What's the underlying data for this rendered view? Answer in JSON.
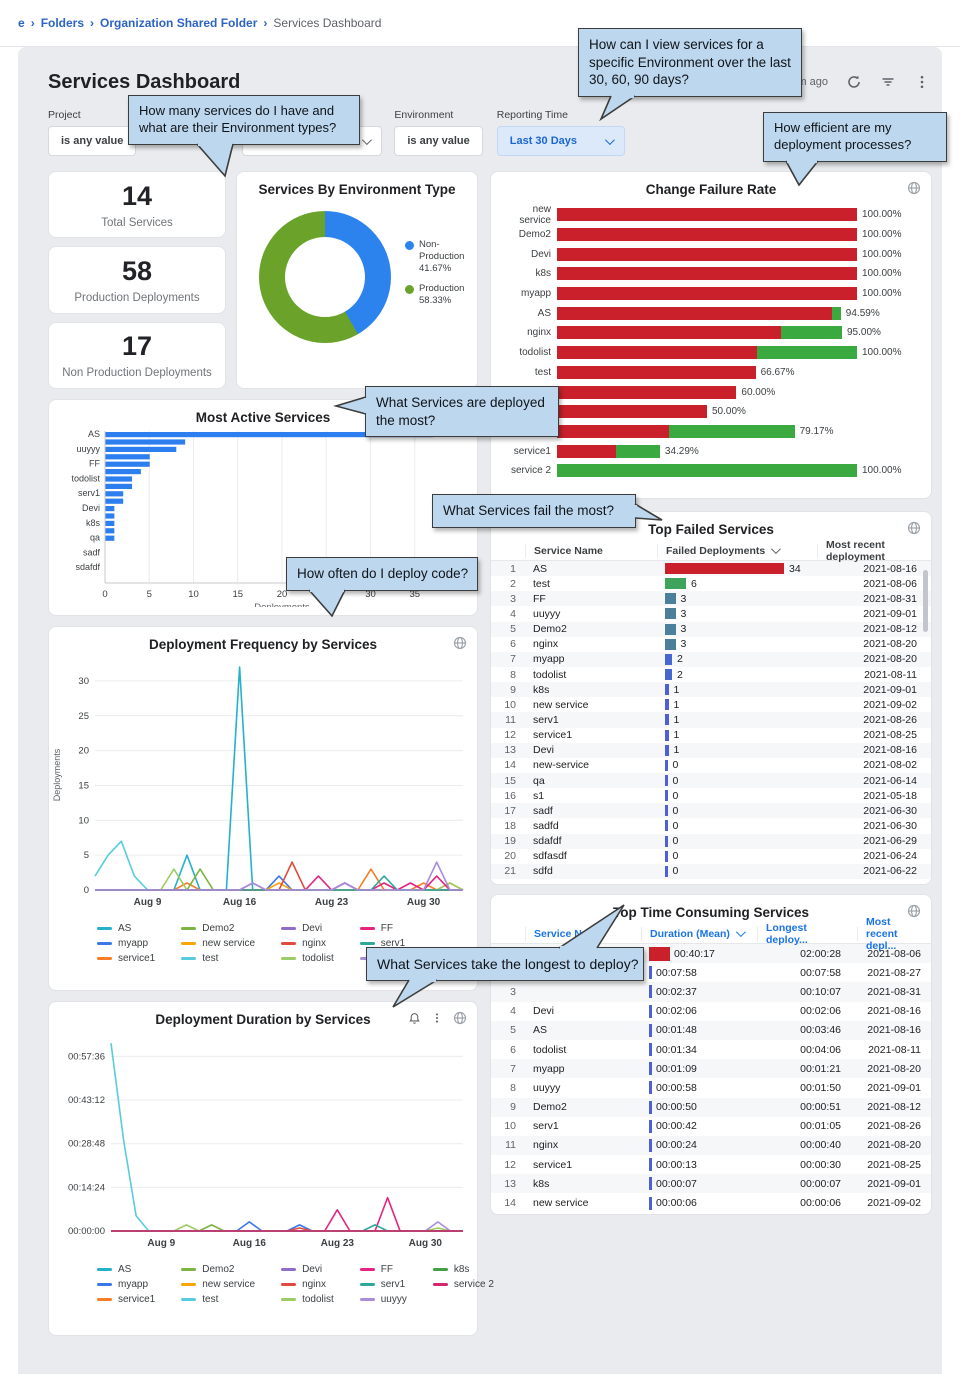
{
  "breadcrumb": {
    "items": [
      "e",
      "Folders",
      "Organization Shared Folder",
      "Services Dashboard"
    ]
  },
  "header": {
    "title": "Services Dashboard",
    "last_refresh": "10m ago"
  },
  "filters": {
    "project_label": "Project",
    "project_value": "is any value",
    "environment_label": "Environment",
    "environment_value": "is any value",
    "reporting_label": "Reporting Time",
    "reporting_value": "Last 30 Days"
  },
  "kpis": [
    {
      "value": "14",
      "label": "Total Services"
    },
    {
      "value": "58",
      "label": "Production Deployments"
    },
    {
      "value": "17",
      "label": "Non Production Deployments"
    }
  ],
  "callouts": {
    "c1": "How can I view services for a specific Environment over the last 30, 60, 90 days?",
    "c2": "How many services do I have and what are their Environment types?",
    "c3": "How efficient are my deployment processes?",
    "c4": "What Services are deployed the most?",
    "c5": "What Services fail the most?",
    "c6": "How often do I deploy code?",
    "c7": "What Services take the longest to deploy?"
  },
  "donut": {
    "title": "Services By Environment Type",
    "type": "pie",
    "slices": [
      {
        "label": "Non-Production",
        "pct": 41.67,
        "pct_label": "41.67%",
        "color": "#2d83ee"
      },
      {
        "label": "Production",
        "pct": 58.33,
        "pct_label": "58.33%",
        "color": "#6ba32a"
      }
    ]
  },
  "change_failure": {
    "title": "Change Failure Rate",
    "type": "bar",
    "red": "#c9202b",
    "green": "#3aa93f",
    "rows": [
      {
        "label": "new service",
        "red": 1.0,
        "green": 0,
        "pct": "100.00%"
      },
      {
        "label": "Demo2",
        "red": 1.0,
        "green": 0,
        "pct": "100.00%"
      },
      {
        "label": "Devi",
        "red": 1.0,
        "green": 0,
        "pct": "100.00%"
      },
      {
        "label": "k8s",
        "red": 1.0,
        "green": 0,
        "pct": "100.00%"
      },
      {
        "label": "myapp",
        "red": 1.0,
        "green": 0,
        "pct": "100.00%"
      },
      {
        "label": "AS",
        "red": 0.915,
        "green": 0.031,
        "pct": "94.59%"
      },
      {
        "label": "nginx",
        "red": 0.748,
        "green": 0.202,
        "pct": "95.00%"
      },
      {
        "label": "todolist",
        "red": 0.665,
        "green": 0.335,
        "pct": "100.00%"
      },
      {
        "label": "test",
        "red": 0.662,
        "green": 0,
        "pct": "66.67%"
      },
      {
        "label": "",
        "red": 0.598,
        "green": 0,
        "pct": "60.00%"
      },
      {
        "label": "",
        "red": 0.5,
        "green": 0,
        "pct": "50.00%"
      },
      {
        "label": "uuyyy",
        "red": 0.374,
        "green": 0.418,
        "pct": "79.17%"
      },
      {
        "label": "service1",
        "red": 0.197,
        "green": 0.146,
        "pct": "34.29%"
      },
      {
        "label": "service 2",
        "red": 0,
        "green": 1.0,
        "pct": "100.00%"
      }
    ]
  },
  "most_active": {
    "title": "Most Active Services",
    "type": "bar",
    "xlabel": "Deployments",
    "bar_color": "#2d7ff0",
    "xticks": [
      0,
      5,
      10,
      15,
      20,
      25,
      30,
      35
    ],
    "xmax": 40,
    "rows": [
      {
        "label": "AS",
        "value": 37
      },
      {
        "label": "",
        "value": 9
      },
      {
        "label": "uuyyy",
        "value": 8
      },
      {
        "label": "",
        "value": 5
      },
      {
        "label": "FF",
        "value": 5
      },
      {
        "label": "",
        "value": 4
      },
      {
        "label": "todolist",
        "value": 3
      },
      {
        "label": "",
        "value": 3
      },
      {
        "label": "serv1",
        "value": 2
      },
      {
        "label": "",
        "value": 2
      },
      {
        "label": "Devi",
        "value": 1
      },
      {
        "label": "",
        "value": 1
      },
      {
        "label": "k8s",
        "value": 1
      },
      {
        "label": "",
        "value": 1
      },
      {
        "label": "qa",
        "value": 1
      },
      {
        "label": "",
        "value": 0
      },
      {
        "label": "sadf",
        "value": 0
      },
      {
        "label": "",
        "value": 0
      },
      {
        "label": "sdafdf",
        "value": 0
      },
      {
        "label": "",
        "value": 0
      }
    ]
  },
  "top_failed": {
    "title": "Top Failed Services",
    "type": "table",
    "columns": [
      "Service Name",
      "Failed Deployments",
      "Most recent deployment"
    ],
    "rows": [
      {
        "n": "1",
        "name": "AS",
        "value": "34",
        "date": "2021-08-16",
        "color": "#c9202b"
      },
      {
        "n": "2",
        "name": "test",
        "value": "6",
        "date": "2021-08-06",
        "color": "#3fa45b"
      },
      {
        "n": "3",
        "name": "FF",
        "value": "3",
        "date": "2021-08-31",
        "color": "#4c7f9b"
      },
      {
        "n": "4",
        "name": "uuyyy",
        "value": "3",
        "date": "2021-09-01",
        "color": "#4c7f9b"
      },
      {
        "n": "5",
        "name": "Demo2",
        "value": "3",
        "date": "2021-08-12",
        "color": "#4c7f9b"
      },
      {
        "n": "6",
        "name": "nginx",
        "value": "3",
        "date": "2021-08-20",
        "color": "#4c7f9b"
      },
      {
        "n": "7",
        "name": "myapp",
        "value": "2",
        "date": "2021-08-20",
        "color": "#4968cf"
      },
      {
        "n": "8",
        "name": "todolist",
        "value": "2",
        "date": "2021-08-11",
        "color": "#4968cf"
      },
      {
        "n": "9",
        "name": "k8s",
        "value": "1",
        "date": "2021-09-01",
        "color": "#4f5fd6"
      },
      {
        "n": "10",
        "name": "new service",
        "value": "1",
        "date": "2021-09-02",
        "color": "#4f5fd6"
      },
      {
        "n": "11",
        "name": "serv1",
        "value": "1",
        "date": "2021-08-26",
        "color": "#4f5fd6"
      },
      {
        "n": "12",
        "name": "service1",
        "value": "1",
        "date": "2021-08-25",
        "color": "#4f5fd6"
      },
      {
        "n": "13",
        "name": "Devi",
        "value": "1",
        "date": "2021-08-16",
        "color": "#4f5fd6"
      },
      {
        "n": "14",
        "name": "new-service",
        "value": "0",
        "date": "2021-08-02",
        "color": "#4f5fd6"
      },
      {
        "n": "15",
        "name": "qa",
        "value": "0",
        "date": "2021-06-14",
        "color": "#4f5fd6"
      },
      {
        "n": "16",
        "name": "s1",
        "value": "0",
        "date": "2021-05-18",
        "color": "#4f5fd6"
      },
      {
        "n": "17",
        "name": "sadf",
        "value": "0",
        "date": "2021-06-30",
        "color": "#4f5fd6"
      },
      {
        "n": "18",
        "name": "sadfd",
        "value": "0",
        "date": "2021-06-30",
        "color": "#4f5fd6"
      },
      {
        "n": "19",
        "name": "sdafdf",
        "value": "0",
        "date": "2021-06-29",
        "color": "#4f5fd6"
      },
      {
        "n": "20",
        "name": "sdfasdf",
        "value": "0",
        "date": "2021-06-24",
        "color": "#4f5fd6"
      },
      {
        "n": "21",
        "name": "sdfd",
        "value": "0",
        "date": "2021-06-22",
        "color": "#4f5fd6"
      }
    ]
  },
  "deploy_freq": {
    "title": "Deployment Frequency by Services",
    "type": "line",
    "ylabel": "Deployments",
    "yticks": [
      0,
      5,
      10,
      15,
      20,
      25,
      30
    ],
    "ymax": 33,
    "n": 29,
    "xticks": [
      {
        "i": 4,
        "label": "Aug 9"
      },
      {
        "i": 11,
        "label": "Aug 16"
      },
      {
        "i": 18,
        "label": "Aug 23"
      },
      {
        "i": 25,
        "label": "Aug 30"
      }
    ],
    "series": [
      {
        "name": "AS",
        "color": "#26b1c9",
        "points": {
          "7": 5,
          "11": 32
        }
      },
      {
        "name": "myapp",
        "color": "#3b78e7",
        "points": {
          "14": 2,
          "19": 1
        }
      },
      {
        "name": "service1",
        "color": "#f77d26",
        "points": {
          "7": 1,
          "21": 3,
          "25": 1
        }
      },
      {
        "name": "Demo2",
        "color": "#7cb342",
        "points": {
          "8": 3
        }
      },
      {
        "name": "new service",
        "color": "#f6a609",
        "points": {
          "14": 1,
          "27": 1
        }
      },
      {
        "name": "test",
        "color": "#57ccdd",
        "points": {
          "0": 2,
          "1": 5,
          "2": 7,
          "3": 2
        }
      },
      {
        "name": "Devi",
        "color": "#8e6cc9",
        "points": {
          "12": 1
        }
      },
      {
        "name": "nginx",
        "color": "#e04b40",
        "points": {
          "15": 4
        }
      },
      {
        "name": "todolist",
        "color": "#9ccc65",
        "points": {
          "6": 3,
          "27": 1
        }
      },
      {
        "name": "FF",
        "color": "#e5247f",
        "points": {
          "17": 2,
          "19": 1,
          "22": 1,
          "24": 1,
          "26": 2
        }
      },
      {
        "name": "serv1",
        "color": "#2fa89a",
        "points": {
          "22": 2
        }
      },
      {
        "name": "uuyyy",
        "color": "#a98ddb",
        "points": {
          "12": 1,
          "19": 1,
          "26": 4
        }
      }
    ]
  },
  "top_time": {
    "title": "Top Time Consuming Services",
    "type": "table",
    "columns": [
      "Service Name",
      "Duration (Mean)",
      "Longest deploy...",
      "Most recent depl..."
    ],
    "rows": [
      {
        "n": "1",
        "name": "",
        "mean": "00:40:17",
        "longest": "02:00:28",
        "date": "2021-08-06",
        "bar": "block"
      },
      {
        "n": "2",
        "name": "",
        "mean": "00:07:58",
        "longest": "00:07:58",
        "date": "2021-08-27",
        "bar": "tick"
      },
      {
        "n": "3",
        "name": "",
        "mean": "00:02:37",
        "longest": "00:10:07",
        "date": "2021-08-31",
        "bar": "tick"
      },
      {
        "n": "4",
        "name": "Devi",
        "mean": "00:02:06",
        "longest": "00:02:06",
        "date": "2021-08-16",
        "bar": "tick"
      },
      {
        "n": "5",
        "name": "AS",
        "mean": "00:01:48",
        "longest": "00:03:46",
        "date": "2021-08-16",
        "bar": "tick"
      },
      {
        "n": "6",
        "name": "todolist",
        "mean": "00:01:34",
        "longest": "00:04:06",
        "date": "2021-08-11",
        "bar": "tick"
      },
      {
        "n": "7",
        "name": "myapp",
        "mean": "00:01:09",
        "longest": "00:01:21",
        "date": "2021-08-20",
        "bar": "tick"
      },
      {
        "n": "8",
        "name": "uuyyy",
        "mean": "00:00:58",
        "longest": "00:01:50",
        "date": "2021-09-01",
        "bar": "tick"
      },
      {
        "n": "9",
        "name": "Demo2",
        "mean": "00:00:50",
        "longest": "00:00:51",
        "date": "2021-08-12",
        "bar": "tick"
      },
      {
        "n": "10",
        "name": "serv1",
        "mean": "00:00:42",
        "longest": "00:01:05",
        "date": "2021-08-26",
        "bar": "tick"
      },
      {
        "n": "11",
        "name": "nginx",
        "mean": "00:00:24",
        "longest": "00:00:40",
        "date": "2021-08-20",
        "bar": "tick"
      },
      {
        "n": "12",
        "name": "service1",
        "mean": "00:00:13",
        "longest": "00:00:30",
        "date": "2021-08-25",
        "bar": "tick"
      },
      {
        "n": "13",
        "name": "k8s",
        "mean": "00:00:07",
        "longest": "00:00:07",
        "date": "2021-09-01",
        "bar": "tick"
      },
      {
        "n": "14",
        "name": "new service",
        "mean": "00:00:06",
        "longest": "00:00:06",
        "date": "2021-09-02",
        "bar": "tick"
      }
    ],
    "bar_block_color": "#c9202b",
    "bar_tick_color": "#4f5fd6"
  },
  "deploy_duration": {
    "title": "Deployment Duration by Services",
    "type": "line",
    "yticks": [
      {
        "v": 0,
        "label": "00:00:00"
      },
      {
        "v": 14.4,
        "label": "00:14:24"
      },
      {
        "v": 28.8,
        "label": "00:28:48"
      },
      {
        "v": 43.2,
        "label": "00:43:12"
      },
      {
        "v": 57.6,
        "label": "00:57:36"
      }
    ],
    "ymax": 64,
    "n": 29,
    "xticks": [
      {
        "i": 4,
        "label": "Aug 9"
      },
      {
        "i": 11,
        "label": "Aug 16"
      },
      {
        "i": 18,
        "label": "Aug 23"
      },
      {
        "i": 25,
        "label": "Aug 30"
      }
    ],
    "series": [
      {
        "name": "AS",
        "color": "#26b1c9",
        "points": {}
      },
      {
        "name": "myapp",
        "color": "#3b78e7",
        "points": {
          "11": 3,
          "15": 2
        }
      },
      {
        "name": "service1",
        "color": "#f77d26",
        "points": {}
      },
      {
        "name": "Demo2",
        "color": "#7cb342",
        "points": {
          "8": 2
        }
      },
      {
        "name": "new service",
        "color": "#f6a609",
        "points": {}
      },
      {
        "name": "test",
        "color": "#57ccdd",
        "points": {
          "0": 62,
          "1": 30,
          "2": 5
        }
      },
      {
        "name": "Devi",
        "color": "#8e6cc9",
        "points": {}
      },
      {
        "name": "nginx",
        "color": "#e04b40",
        "points": {
          "15": 1
        }
      },
      {
        "name": "todolist",
        "color": "#9ccc65",
        "points": {
          "6": 2,
          "26": 1
        }
      },
      {
        "name": "FF",
        "color": "#e5247f",
        "points": {
          "18": 7,
          "22": 11
        }
      },
      {
        "name": "serv1",
        "color": "#2fa89a",
        "points": {
          "21": 2
        }
      },
      {
        "name": "uuyyy",
        "color": "#a98ddb",
        "points": {
          "26": 3
        }
      },
      {
        "name": "k8s",
        "color": "#43a047",
        "points": {}
      },
      {
        "name": "service 2",
        "color": "#d6246e",
        "points": {}
      }
    ]
  }
}
